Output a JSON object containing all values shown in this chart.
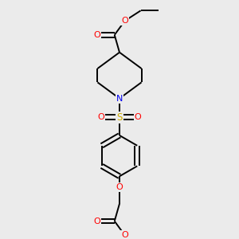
{
  "background_color": "#ebebeb",
  "atom_colors": {
    "O": "#ff0000",
    "N": "#0000ee",
    "S": "#ccaa00"
  },
  "bond_color": "#000000",
  "figsize": [
    3.0,
    3.0
  ],
  "dpi": 100,
  "lw": 1.4
}
